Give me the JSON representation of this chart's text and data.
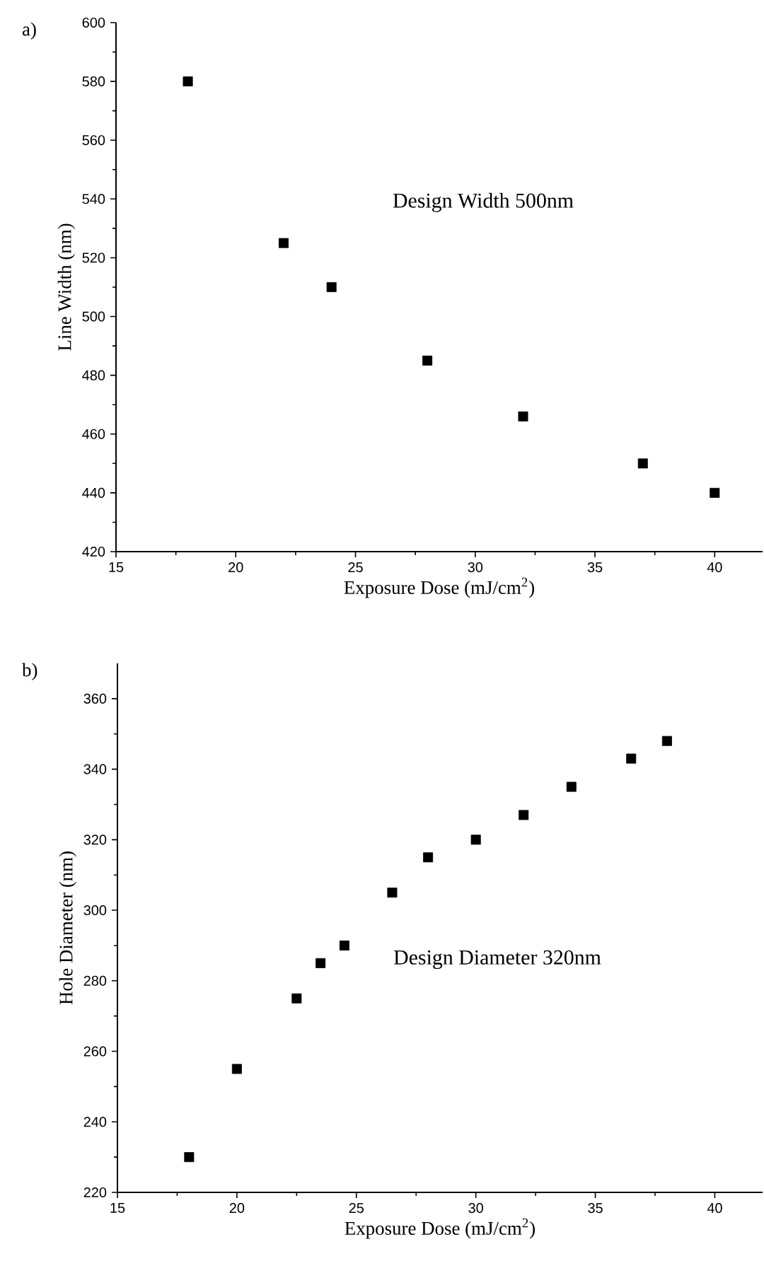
{
  "chart_data": [
    {
      "type": "scatter",
      "title": "a)",
      "xlabel": "Exposure Dose (mJ/cm$^{2}$)",
      "ylabel": "Line Width (nm)",
      "annotations": [
        "Design Width 500nm"
      ],
      "x": [
        18,
        22,
        24,
        28,
        32,
        37,
        40
      ],
      "values": [
        580,
        525,
        510,
        485,
        466,
        450,
        440
      ],
      "color": "#000000",
      "marker": "square",
      "xlim": [
        15,
        42
      ],
      "ylim": [
        420,
        600
      ],
      "xticks": [
        15,
        20,
        25,
        30,
        35,
        40
      ],
      "yticks": [
        420,
        440,
        460,
        480,
        500,
        520,
        540,
        560,
        580,
        600
      ]
    },
    {
      "type": "scatter",
      "title": "b)",
      "xlabel": "Exposure Dose (mJ/cm$^{2}$)",
      "ylabel": "Hole Diameter (nm)",
      "annotations": [
        "Design Diameter 320nm"
      ],
      "x": [
        18,
        20,
        22.5,
        23.5,
        24.5,
        26.5,
        28,
        30,
        32,
        34,
        36.5,
        38
      ],
      "values": [
        230,
        255,
        275,
        285,
        290,
        305,
        315,
        320,
        327,
        335,
        343,
        348
      ],
      "color": "#000000",
      "marker": "square",
      "xlim": [
        15,
        42
      ],
      "ylim": [
        220,
        370
      ],
      "xticks": [
        15,
        20,
        25,
        30,
        35,
        40
      ],
      "yticks": [
        220,
        240,
        260,
        280,
        300,
        320,
        340,
        360
      ]
    }
  ]
}
